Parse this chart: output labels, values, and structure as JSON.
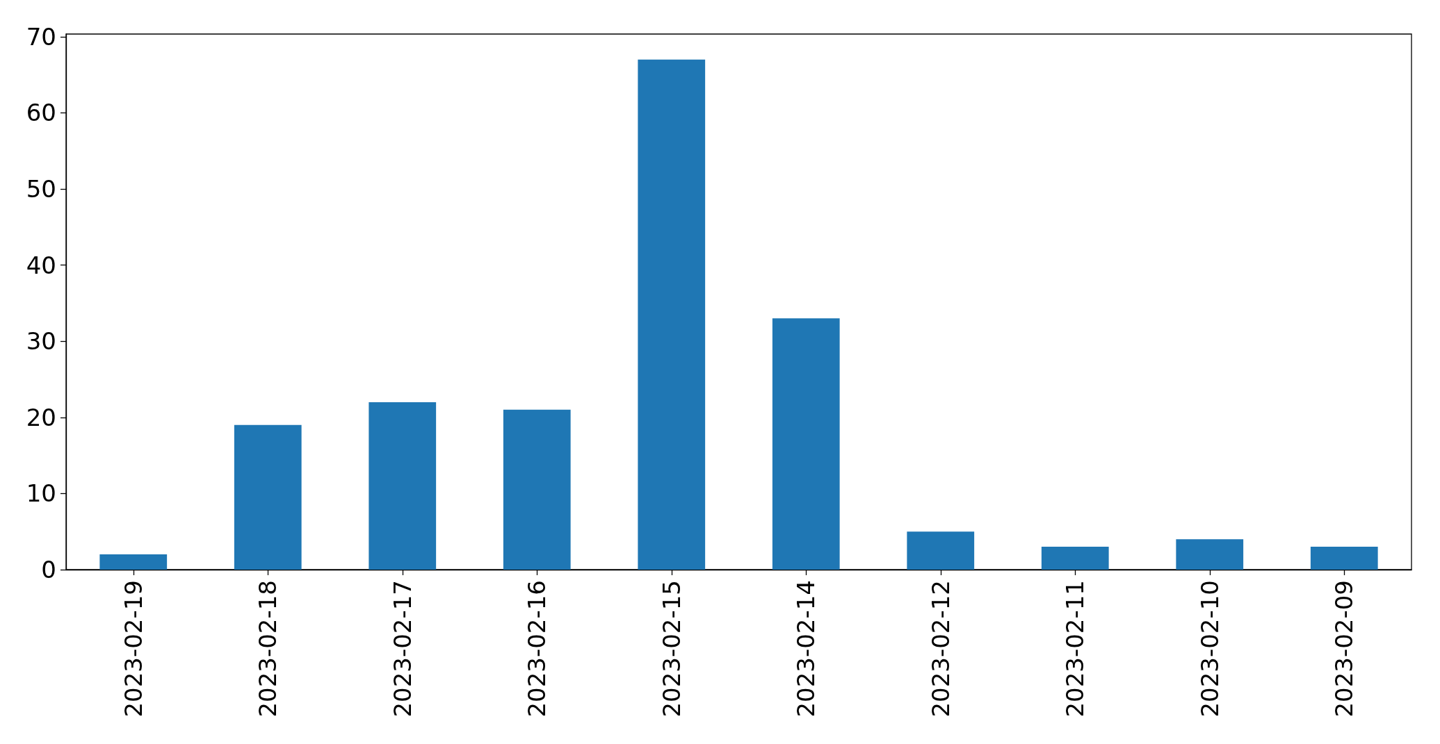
{
  "chart_data": {
    "type": "bar",
    "categories": [
      "2023-02-19",
      "2023-02-18",
      "2023-02-17",
      "2023-02-16",
      "2023-02-15",
      "2023-02-14",
      "2023-02-12",
      "2023-02-11",
      "2023-02-10",
      "2023-02-09"
    ],
    "values": [
      2,
      19,
      22,
      21,
      67,
      33,
      5,
      3,
      4,
      3
    ],
    "color": "#1f77b4",
    "ylim": [
      0,
      70.35
    ],
    "yticks": [
      0,
      10,
      20,
      30,
      40,
      50,
      60,
      70
    ],
    "grid": false
  }
}
